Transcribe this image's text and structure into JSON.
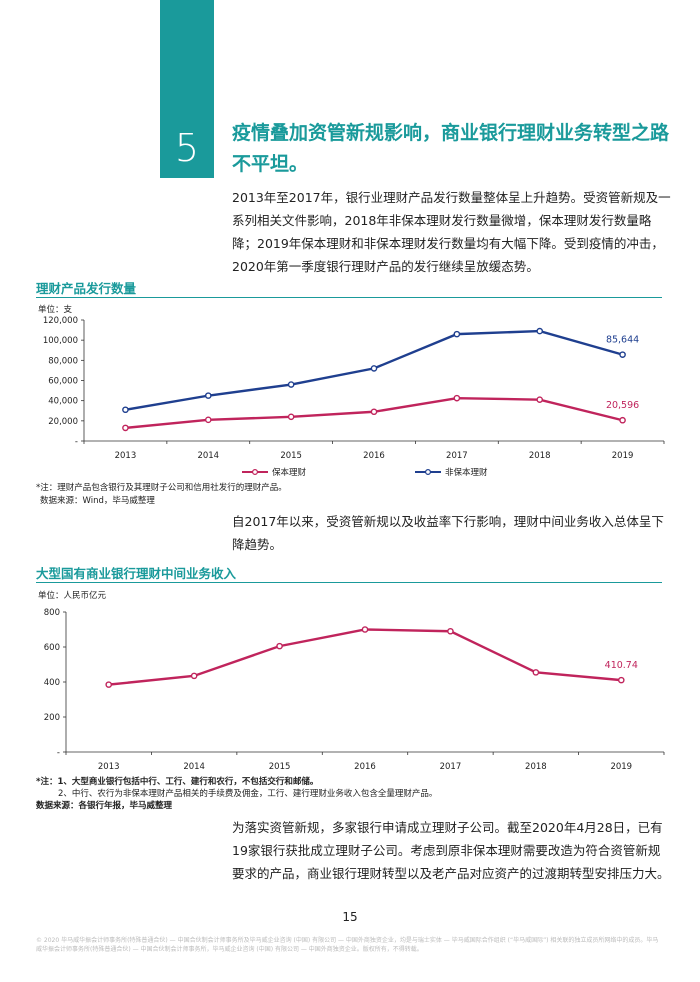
{
  "section": {
    "number": "5",
    "title": "疫情叠加资管新规影响，商业银行理财业务转型之路不平坦。"
  },
  "paragraphs": {
    "p1": "2013年至2017年，银行业理财产品发行数量整体呈上升趋势。受资管新规及一系列相关文件影响，2018年非保本理财发行数量微增，保本理财发行数量略降；2019年保本理财和非保本理财发行数量均有大幅下降。受到疫情的冲击，2020年第一季度银行理财产品的发行继续呈放缓态势。",
    "p2": "自2017年以来，受资管新规以及收益率下行影响，理财中间业务收入总体呈下降趋势。",
    "p3": "为落实资管新规，多家银行申请成立理财子公司。截至2020年4月28日，已有19家银行获批成立理财子公司。考虑到原非保本理财需要改造为符合资管新规要求的产品，商业银行理财转型以及老产品对应资产的过渡期转型安排压力大。"
  },
  "chart_data": [
    {
      "type": "line",
      "title": "理财产品发行数量",
      "unit": "单位：支",
      "categories": [
        "2013",
        "2014",
        "2015",
        "2016",
        "2017",
        "2018",
        "2019"
      ],
      "y_ticks": [
        "120,000",
        "100,000",
        "80,000",
        "60,000",
        "40,000",
        "20,000",
        "-"
      ],
      "ylim": [
        0,
        120000
      ],
      "series": [
        {
          "name": "保本理财",
          "color": "#c0245c",
          "values": [
            13000,
            21000,
            24000,
            29000,
            42500,
            41000,
            20596
          ],
          "end_label": "20,596"
        },
        {
          "name": "非保本理财",
          "color": "#1f3f8f",
          "values": [
            31000,
            45000,
            56000,
            72000,
            106000,
            109000,
            85644
          ],
          "end_label": "85,644"
        }
      ],
      "notes": [
        "*注：理财产品包含银行及其理财子公司和信用社发行的理财产品。",
        "数据来源：Wind，毕马威整理"
      ]
    },
    {
      "type": "line",
      "title": "大型国有商业银行理财中间业务收入",
      "unit": "单位：人民币亿元",
      "categories": [
        "2013",
        "2014",
        "2015",
        "2016",
        "2017",
        "2018",
        "2019"
      ],
      "y_ticks": [
        "800",
        "600",
        "400",
        "200",
        "-"
      ],
      "ylim": [
        0,
        800
      ],
      "series": [
        {
          "color": "#c0245c",
          "values": [
            385,
            435,
            605,
            700,
            690,
            455,
            410.74
          ],
          "end_label": "410.74"
        }
      ],
      "notes": [
        "*注：1、大型商业银行包括中行、工行、建行和农行，不包括交行和邮储。",
        "2、中行、农行为非保本理财产品相关的手续费及佣金，工行、建行理财业务收入包含全量理财产品。",
        "数据来源：各银行年报，毕马威整理"
      ]
    }
  ],
  "page_number": "15",
  "footer": "© 2020 毕马威华振会计师事务所(特殊普通合伙) — 中国合伙制会计师事务所及毕马威企业咨询 (中国) 有限公司 — 中国外商独资企业，均是与瑞士实体 — 毕马威国际合作组织 (“毕马威国际”) 相关联的独立成员所网络中的成员。毕马威华振会计师事务所(特殊普通合伙) — 中国合伙制会计师事务所，毕马威企业咨询 (中国) 有限公司 — 中国外商独资企业。版权所有，不得转载。"
}
